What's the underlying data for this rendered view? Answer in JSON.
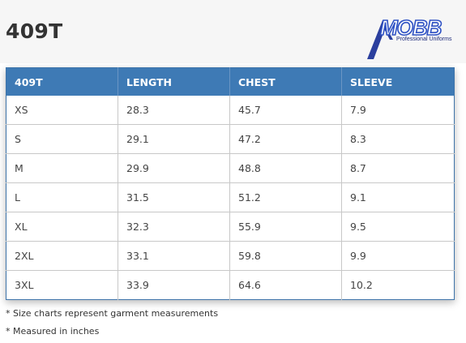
{
  "header": {
    "title": "409T"
  },
  "logo": {
    "wordmark": "MOBB",
    "tagline": "Professional Uniforms",
    "brand_color": "#2f52c4"
  },
  "table": {
    "header_color": "#3e7ab5",
    "columns": [
      "409T",
      "LENGTH",
      "CHEST",
      "SLEEVE"
    ],
    "rows": [
      [
        "XS",
        "28.3",
        "45.7",
        "7.9"
      ],
      [
        "S",
        "29.1",
        "47.2",
        "8.3"
      ],
      [
        "M",
        "29.9",
        "48.8",
        "8.7"
      ],
      [
        "L",
        "31.5",
        "51.2",
        "9.1"
      ],
      [
        "XL",
        "32.3",
        "55.9",
        "9.5"
      ],
      [
        "2XL",
        "33.1",
        "59.8",
        "9.9"
      ],
      [
        "3XL",
        "33.9",
        "64.6",
        "10.2"
      ]
    ]
  },
  "notes": [
    "* Size charts represent garment measurements",
    "* Measured in inches"
  ]
}
